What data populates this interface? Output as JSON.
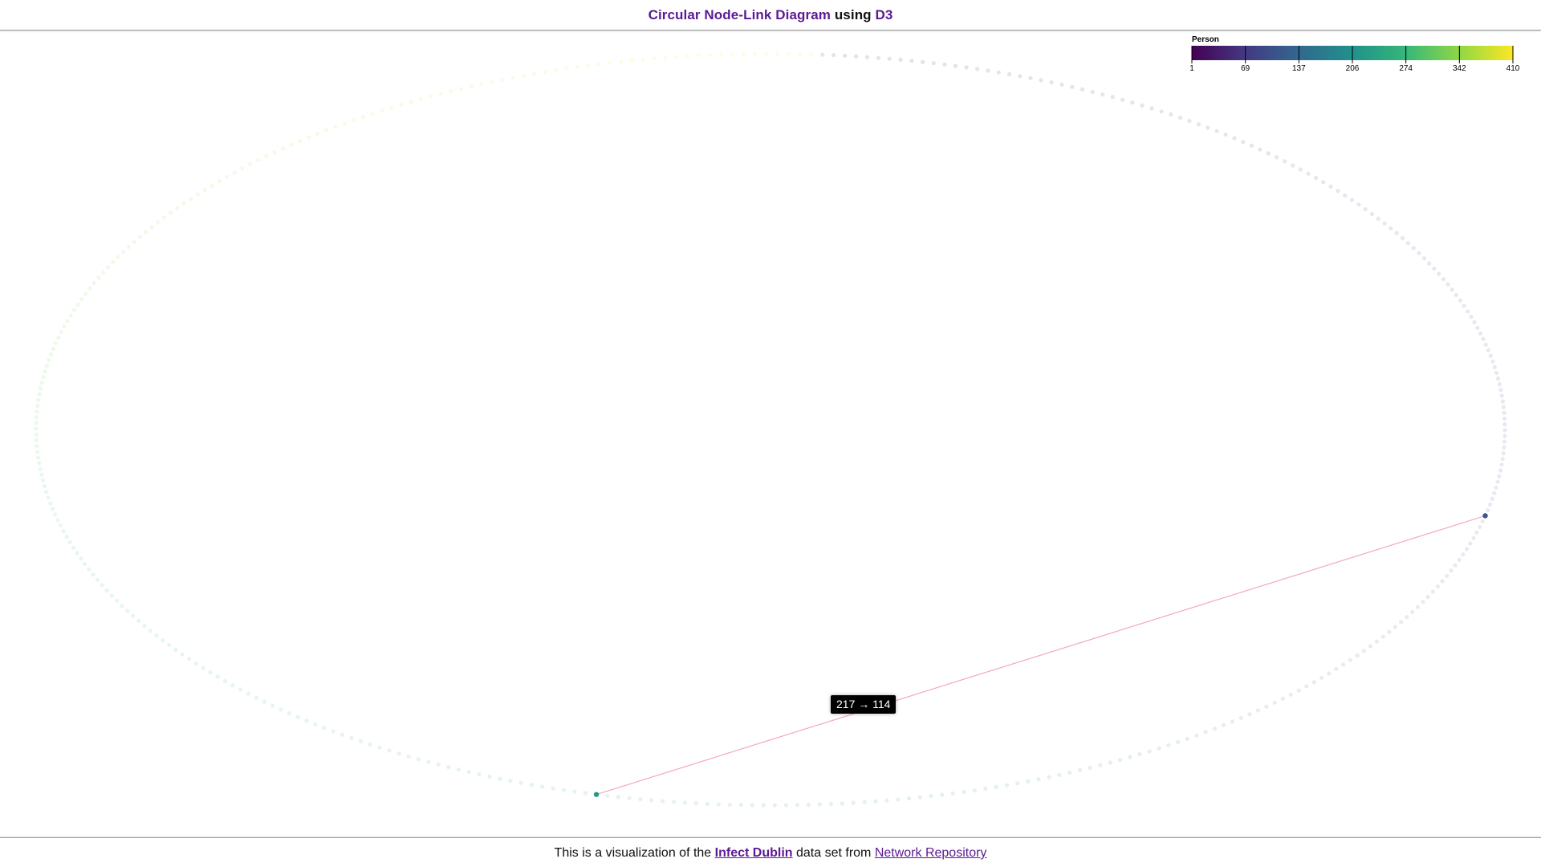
{
  "header": {
    "title_part1": "Circular Node-Link Diagram",
    "title_part2": "using",
    "title_part3": "D3"
  },
  "legend": {
    "title": "Person",
    "ticks": [
      "1",
      "69",
      "137",
      "206",
      "274",
      "342",
      "410"
    ],
    "color_stops": [
      "#440154",
      "#443983",
      "#31688e",
      "#21918c",
      "#35b779",
      "#90d743",
      "#fde725"
    ]
  },
  "chart_data": {
    "type": "node-link",
    "layout": "circular",
    "node_count": 410,
    "node_ids_range": [
      1,
      410
    ],
    "color_scale": "viridis",
    "highlighted_link": {
      "source": 217,
      "target": 114
    },
    "link_color": "#f4a6c0"
  },
  "tooltip": {
    "text": "217 → 114"
  },
  "footer": {
    "text_before": "This is a visualization of the",
    "link1": "Infect Dublin",
    "text_middle": "data set from",
    "link2": "Network Repository"
  },
  "colors": {
    "accent": "#5b1a93",
    "dimmed_node": "#e4e8ee"
  }
}
